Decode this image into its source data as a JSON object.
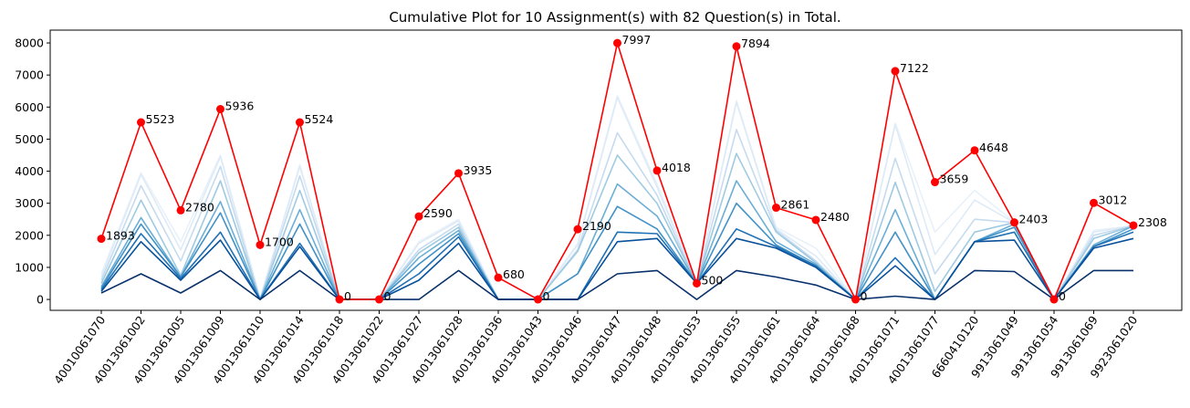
{
  "chart_data": {
    "type": "line",
    "title": "Cumulative Plot for 10 Assignment(s) with 82 Question(s) in Total.",
    "xlabel": "",
    "ylabel": "",
    "ylim": [
      -340,
      8400
    ],
    "yticks": [
      0,
      1000,
      2000,
      3000,
      4000,
      5000,
      6000,
      7000,
      8000
    ],
    "grid": false,
    "categories": [
      "40010061070",
      "40013061002",
      "40013061005",
      "40013061009",
      "40013061010",
      "40013061014",
      "40013061018",
      "40013061022",
      "40013061027",
      "40013061028",
      "40013061036",
      "40013061043",
      "40013061046",
      "40013061047",
      "40013061048",
      "40013061053",
      "40013061055",
      "40013061061",
      "40013061064",
      "40013061068",
      "40013061071",
      "40013061077",
      "6660410120",
      "9913061049",
      "9913061054",
      "9913061069",
      "9923061020"
    ],
    "colors": {
      "total": "#ff0000",
      "series": [
        "#08306b",
        "#08519c",
        "#2171b5",
        "#4292c6",
        "#6baed6",
        "#9ecae1",
        "#c6dbef",
        "#deebf7",
        "#e8f1fa"
      ]
    },
    "series": [
      {
        "values": [
          200,
          800,
          200,
          900,
          0,
          900,
          0,
          0,
          0,
          900,
          0,
          0,
          0,
          800,
          900,
          0,
          900,
          700,
          450,
          0,
          100,
          0,
          900,
          870,
          0,
          900,
          900
        ]
      },
      {
        "values": [
          250,
          1800,
          600,
          1850,
          0,
          1650,
          0,
          0,
          600,
          1750,
          0,
          0,
          0,
          1800,
          1900,
          500,
          1900,
          1600,
          1000,
          0,
          1050,
          0,
          1800,
          1850,
          0,
          1600,
          1900
        ]
      },
      {
        "values": [
          300,
          2050,
          650,
          2100,
          0,
          1750,
          0,
          0,
          800,
          1950,
          0,
          0,
          0,
          2100,
          2050,
          500,
          2200,
          1650,
          1050,
          0,
          1300,
          0,
          1800,
          2100,
          0,
          1650,
          2100
        ]
      },
      {
        "values": [
          350,
          2350,
          700,
          2700,
          0,
          2350,
          0,
          0,
          1100,
          2050,
          0,
          0,
          800,
          2900,
          2200,
          500,
          3000,
          1700,
          1050,
          0,
          2100,
          0,
          1800,
          2250,
          0,
          1650,
          2200
        ]
      },
      {
        "values": [
          400,
          2550,
          700,
          3050,
          0,
          2800,
          0,
          0,
          1300,
          2150,
          0,
          0,
          800,
          3600,
          2600,
          500,
          3700,
          1800,
          1100,
          0,
          2800,
          0,
          1800,
          2350,
          0,
          1700,
          2300
        ]
      },
      {
        "values": [
          500,
          3100,
          750,
          3700,
          0,
          3400,
          0,
          0,
          1450,
          2250,
          0,
          0,
          1500,
          4500,
          3000,
          500,
          4550,
          2100,
          1150,
          0,
          3650,
          250,
          2100,
          2400,
          0,
          1900,
          2300
        ]
      },
      {
        "values": [
          600,
          3550,
          1200,
          4150,
          0,
          3850,
          0,
          0,
          1550,
          2350,
          0,
          0,
          1550,
          5200,
          3250,
          500,
          5300,
          2150,
          1200,
          0,
          4400,
          800,
          2500,
          2400,
          0,
          2000,
          2300
        ]
      },
      {
        "values": [
          700,
          3900,
          1550,
          4450,
          0,
          4150,
          0,
          0,
          1750,
          2450,
          0,
          0,
          1700,
          6300,
          3500,
          500,
          6150,
          2200,
          1350,
          0,
          5450,
          1400,
          3100,
          2400,
          0,
          2100,
          2300
        ]
      },
      {
        "values": [
          800,
          3950,
          1800,
          4500,
          50,
          4200,
          0,
          0,
          1800,
          2500,
          0,
          0,
          1750,
          6350,
          3600,
          500,
          6200,
          2250,
          1600,
          0,
          5500,
          2100,
          3400,
          2420,
          0,
          2150,
          2300
        ]
      }
    ],
    "total": {
      "values": [
        1893,
        5523,
        2780,
        5936,
        1700,
        5524,
        0,
        0,
        2590,
        3935,
        680,
        0,
        2190,
        7997,
        4018,
        500,
        7894,
        2861,
        2480,
        0,
        7122,
        3659,
        4648,
        2403,
        0,
        3012,
        2308
      ]
    },
    "data_labels": [
      "1893",
      "5523",
      "2780",
      "5936",
      "1700",
      "5524",
      "0",
      "0",
      "2590",
      "3935",
      "680",
      "0",
      "2190",
      "7997",
      "4018",
      "500",
      "7894",
      "2861",
      "2480",
      "0",
      "7122",
      "3659",
      "4648",
      "2403",
      "0",
      "3012",
      "2308"
    ]
  }
}
